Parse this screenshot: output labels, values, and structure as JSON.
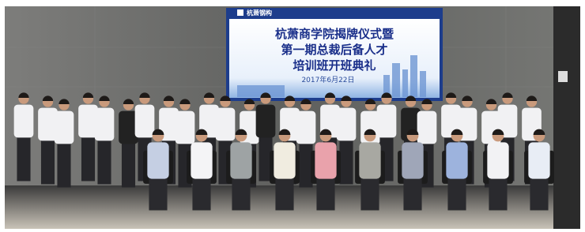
{
  "screen": {
    "logo": "杭萧钢构",
    "title_lines": [
      "杭萧商学院揭牌仪式暨",
      "第一期总裁后备人才",
      "培训班开班典礼"
    ],
    "date": "2017年6月22日"
  }
}
